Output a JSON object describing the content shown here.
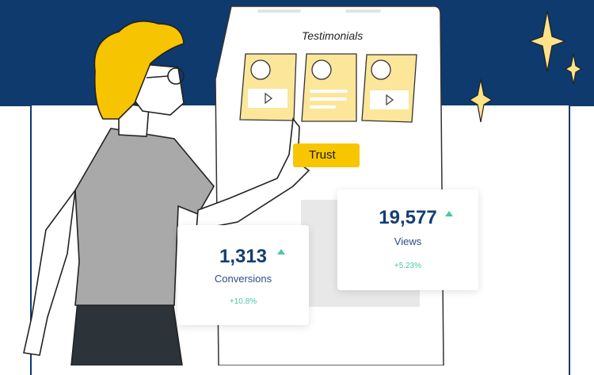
{
  "testimonials": {
    "title": "Testimonials",
    "cards": [
      {
        "media": "play-icon"
      },
      {
        "media": "text-lines"
      },
      {
        "media": "play-icon"
      }
    ]
  },
  "cta": {
    "label": "Trust"
  },
  "stats": [
    {
      "value": "1,313",
      "label": "Conversions",
      "change": "+10.8%",
      "trend": "up"
    },
    {
      "value": "19,577",
      "label": "Views",
      "change": "+5.23%",
      "trend": "up"
    }
  ],
  "colors": {
    "navy": "#0e3a6e",
    "yellow": "#f7c600",
    "card_yellow": "#fbe69a",
    "teal": "#4ac7a8",
    "hair": "#f6c400"
  }
}
